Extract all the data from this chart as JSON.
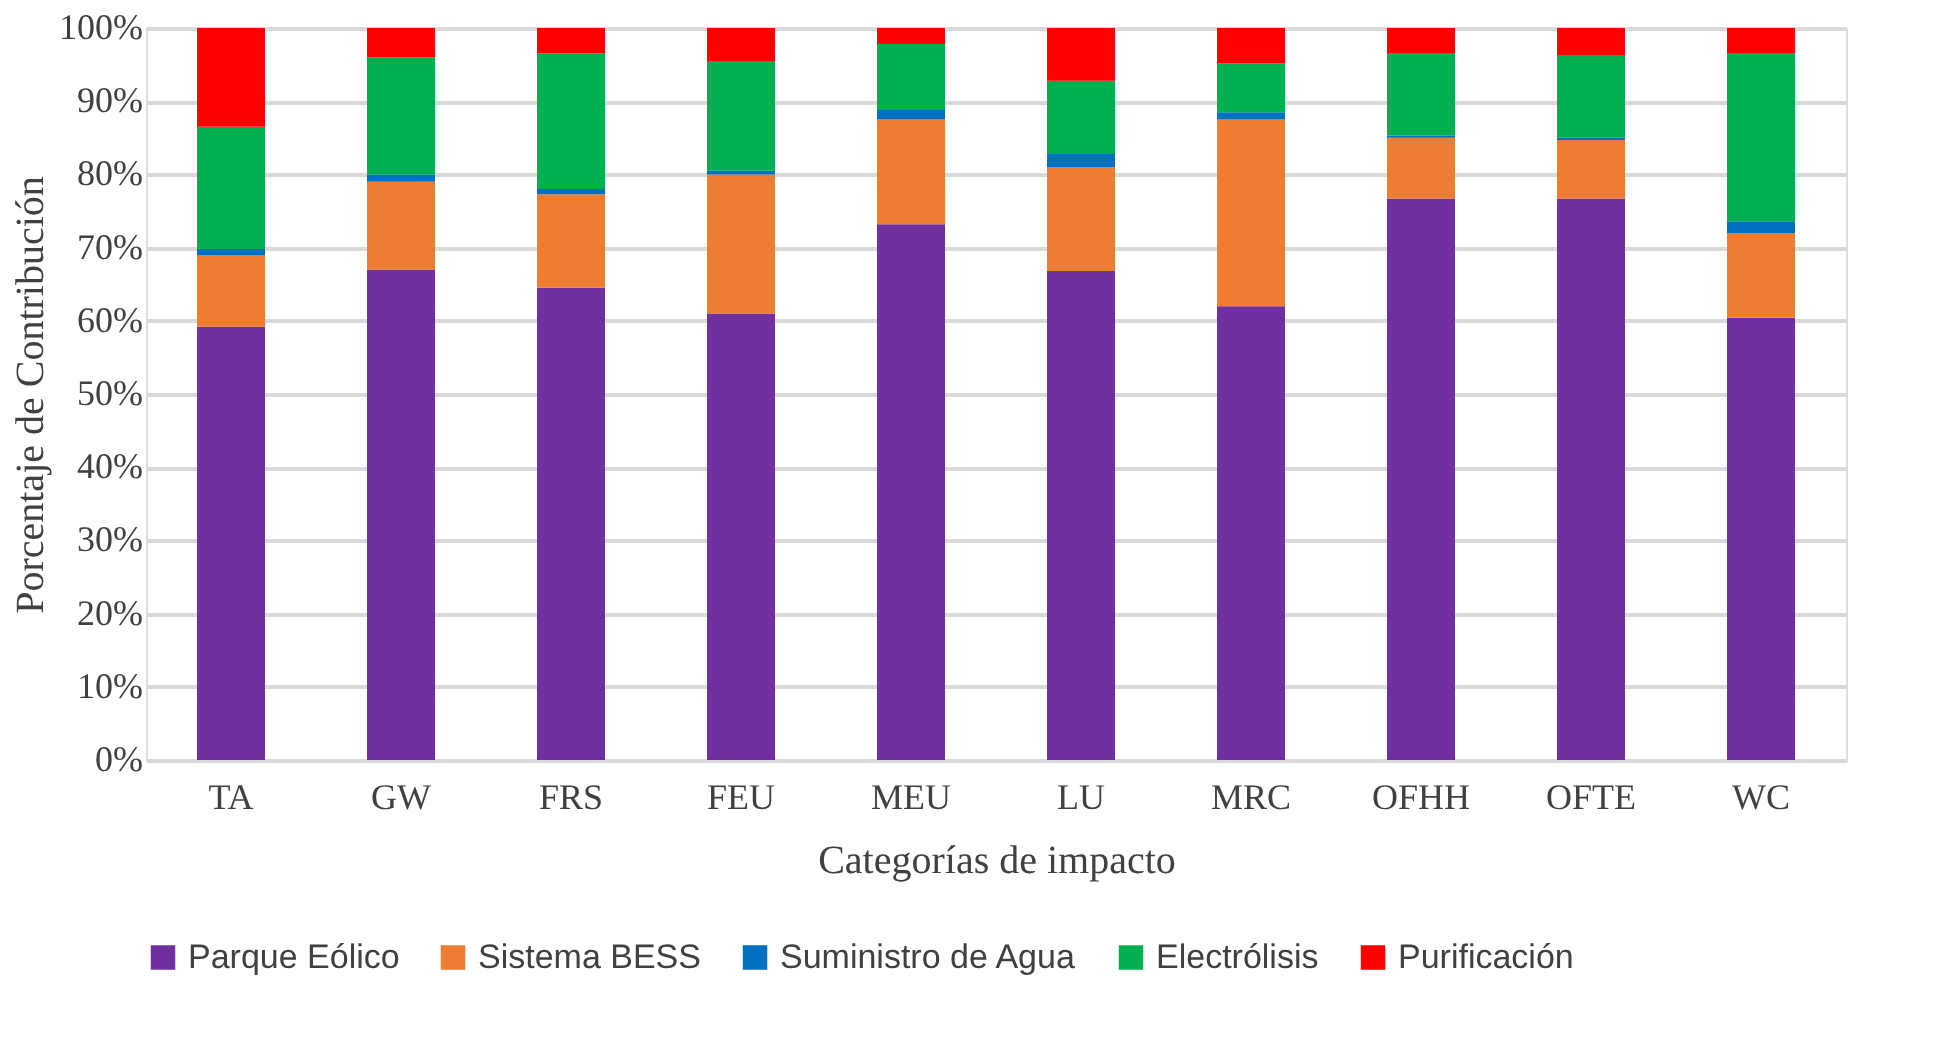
{
  "chart_data": {
    "type": "bar",
    "stacked": true,
    "xlabel": "Categorías de impacto",
    "ylabel": "Porcentaje de Contribución",
    "categories": [
      "TA",
      "GW",
      "FRS",
      "FEU",
      "MEU",
      "LU",
      "MRC",
      "OFHH",
      "OFTE",
      "WC"
    ],
    "series": [
      {
        "name": "Parque Eólico",
        "color": "#7030a0",
        "values": [
          59.2,
          67,
          64.5,
          61,
          73.2,
          66.8,
          62,
          76.7,
          76.7,
          60.4
        ]
      },
      {
        "name": "Sistema BESS",
        "color": "#ed7d31",
        "values": [
          9.8,
          12,
          12.8,
          19,
          14.3,
          14.2,
          25.5,
          8.3,
          8,
          11.6
        ]
      },
      {
        "name": "Suministro de Agua",
        "color": "#0070c0",
        "values": [
          0.8,
          1,
          0.7,
          0.5,
          1.3,
          1.8,
          1,
          0.3,
          0.3,
          1.6
        ]
      },
      {
        "name": "Electrólisis",
        "color": "#00b050",
        "values": [
          16.7,
          16,
          18.5,
          15,
          9,
          10,
          6.7,
          11.3,
          11.2,
          23
        ]
      },
      {
        "name": "Purificación",
        "color": "#ff0000",
        "values": [
          13.5,
          4,
          3.5,
          4.5,
          2.2,
          7.2,
          4.8,
          3.4,
          3.8,
          3.4
        ]
      }
    ],
    "ylim": [
      0,
      100
    ],
    "yticks": [
      {
        "value": 0,
        "label": "0%"
      },
      {
        "value": 10,
        "label": "10%"
      },
      {
        "value": 20,
        "label": "20%"
      },
      {
        "value": 30,
        "label": "30%"
      },
      {
        "value": 40,
        "label": "40%"
      },
      {
        "value": 50,
        "label": "50%"
      },
      {
        "value": 60,
        "label": "60%"
      },
      {
        "value": 70,
        "label": "70%"
      },
      {
        "value": 80,
        "label": "80%"
      },
      {
        "value": 90,
        "label": "90%"
      },
      {
        "value": 100,
        "label": "100%"
      }
    ],
    "grid": "y",
    "legend": "bottom"
  }
}
